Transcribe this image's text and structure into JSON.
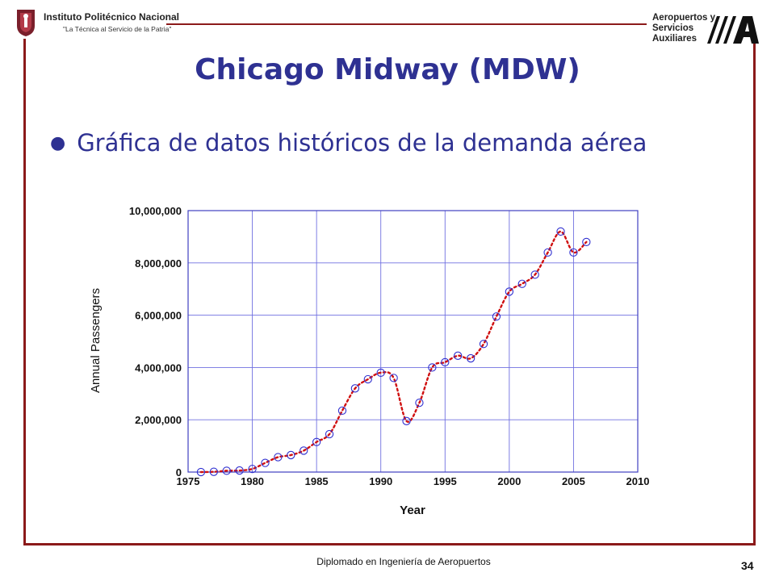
{
  "header": {
    "institution_name": "Instituto Politécnico Nacional",
    "institution_motto": "\"La Técnica al Servicio de la Patria\"",
    "company_line1": "Aeropuertos y",
    "company_line2": "Servicios",
    "company_line3": "Auxiliares"
  },
  "slide": {
    "title": "Chicago Midway (MDW)",
    "bullet": "Gráfica de datos históricos de la demanda aérea"
  },
  "footer": {
    "text": "Diplomado en Ingeniería de Aeropuertos",
    "page_number": "34"
  },
  "colors": {
    "frame": "#8b1a1a",
    "title": "#2e3192",
    "marker": "#3030d0",
    "trend": "#d01010",
    "grid": "#7070e0"
  },
  "chart_data": {
    "type": "scatter",
    "xlabel": "Year",
    "ylabel": "Annual Passengers",
    "xlim": [
      1975,
      2010
    ],
    "ylim": [
      0,
      10000000
    ],
    "xticks": [
      "1975",
      "1980",
      "1985",
      "1990",
      "1995",
      "2000",
      "2005",
      "2010"
    ],
    "yticks": [
      "0",
      "2,000,000",
      "4,000,000",
      "6,000,000",
      "8,000,000",
      "10,000,000"
    ],
    "grid": true,
    "series": [
      {
        "x": [
          1976,
          1977,
          1978,
          1979,
          1980,
          1981,
          1982,
          1983,
          1984,
          1985,
          1986,
          1987,
          1988,
          1989,
          1990,
          1991,
          1992,
          1993,
          1994,
          1995,
          1996,
          1997,
          1998,
          1999,
          2000,
          2001,
          2002,
          2003,
          2004,
          2005,
          2006
        ],
        "y": [
          0,
          10000,
          50000,
          60000,
          120000,
          350000,
          570000,
          650000,
          820000,
          1150000,
          1450000,
          2350000,
          3200000,
          3550000,
          3800000,
          3600000,
          1950000,
          2650000,
          4000000,
          4200000,
          4450000,
          4350000,
          4900000,
          5950000,
          6900000,
          7200000,
          7550000,
          8400000,
          9200000,
          8400000,
          8800000
        ]
      }
    ]
  }
}
